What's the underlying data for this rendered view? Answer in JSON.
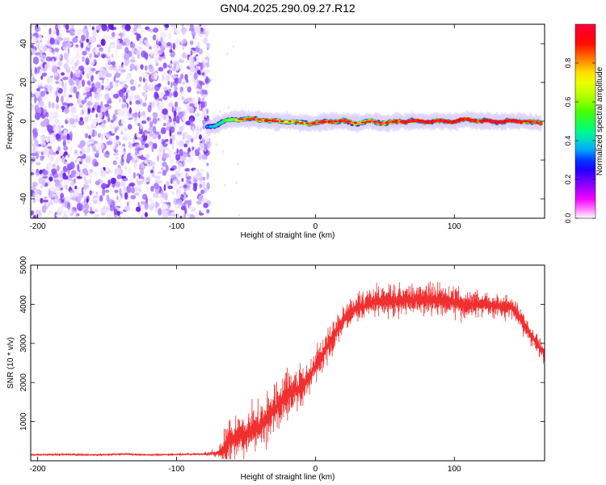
{
  "title": "GN04.2025.290.09.27.R12",
  "chart_data": [
    {
      "type": "heatmap",
      "title": "GN04.2025.290.09.27.R12",
      "xlabel": "Height of straight line (km)",
      "ylabel": "Frequency (Hz)",
      "xlim": [
        -205,
        165
      ],
      "ylim": [
        -50,
        50
      ],
      "x_ticks": [
        {
          "value": -200,
          "label": "-200"
        },
        {
          "value": -100,
          "label": "-100"
        },
        {
          "value": 0,
          "label": "0"
        },
        {
          "value": 100,
          "label": "100"
        }
      ],
      "y_ticks": [
        {
          "value": -40,
          "label": "-40"
        },
        {
          "value": -20,
          "label": "-20"
        },
        {
          "value": 0,
          "label": "0"
        },
        {
          "value": 20,
          "label": "20"
        },
        {
          "value": 40,
          "label": "40"
        }
      ],
      "noise_region": {
        "x_from": -205,
        "x_to": -77,
        "amplitude": "0.0-0.1"
      },
      "signal_trace": {
        "x": [
          -78,
          -72,
          -65,
          -58,
          -50,
          -40,
          -30,
          -20,
          -10,
          0,
          10,
          20,
          30,
          40,
          50,
          60,
          70,
          80,
          90,
          100,
          110,
          120,
          130,
          140,
          150,
          163
        ],
        "frequency": [
          -3,
          -2,
          0,
          1,
          1,
          1,
          0,
          0,
          -1,
          -1,
          0,
          0,
          -1,
          0,
          -1,
          0,
          0,
          0,
          0,
          0,
          1,
          0,
          0,
          0,
          0,
          -1
        ],
        "amplitude": [
          0.3,
          0.4,
          0.5,
          0.6,
          0.8,
          0.8,
          0.85,
          0.7,
          0.75,
          0.8,
          0.85,
          0.85,
          0.75,
          0.8,
          0.85,
          0.85,
          0.9,
          0.9,
          0.9,
          0.9,
          0.9,
          0.85,
          0.9,
          0.9,
          0.85,
          0.8
        ]
      },
      "colorbar": {
        "label": "Normalized spectral amplitude",
        "range": [
          0,
          1
        ],
        "ticks": [
          {
            "value": 0.0,
            "label": "0.0"
          },
          {
            "value": 0.2,
            "label": "0.2"
          },
          {
            "value": 0.4,
            "label": "0.4"
          },
          {
            "value": 0.6,
            "label": "0.6"
          },
          {
            "value": 0.8,
            "label": "0.8"
          }
        ],
        "colors": [
          "#ffffff",
          "#ff00ff",
          "#8000ff",
          "#0000ff",
          "#00c0ff",
          "#00ff80",
          "#40ff00",
          "#c0ff00",
          "#ffff00",
          "#ff8000",
          "#ff0000",
          "#ff0040"
        ]
      }
    },
    {
      "type": "line",
      "xlabel": "Height of straight line (km)",
      "ylabel": "SNR (10 * v/v)",
      "xlim": [
        -205,
        165
      ],
      "ylim": [
        0,
        5000
      ],
      "x_ticks": [
        {
          "value": -200,
          "label": "-200"
        },
        {
          "value": -100,
          "label": "-100"
        },
        {
          "value": 0,
          "label": "0"
        },
        {
          "value": 100,
          "label": "100"
        }
      ],
      "y_ticks": [
        {
          "value": 1000,
          "label": "1000"
        },
        {
          "value": 2000,
          "label": "2000"
        },
        {
          "value": 3000,
          "label": "3000"
        },
        {
          "value": 4000,
          "label": "4000"
        },
        {
          "value": 5000,
          "label": "5000"
        }
      ],
      "series": [
        {
          "name": "SNR",
          "color": "#f03030",
          "x": [
            -205,
            -180,
            -160,
            -140,
            -120,
            -100,
            -80,
            -70,
            -65,
            -62,
            -58,
            -55,
            -50,
            -45,
            -40,
            -35,
            -30,
            -25,
            -20,
            -15,
            -10,
            -5,
            0,
            5,
            10,
            15,
            20,
            25,
            30,
            35,
            40,
            50,
            60,
            70,
            80,
            90,
            100,
            110,
            120,
            130,
            140,
            145,
            150,
            155,
            160,
            165
          ],
          "y": [
            150,
            160,
            150,
            170,
            150,
            160,
            170,
            200,
            300,
            600,
            500,
            700,
            650,
            800,
            900,
            1050,
            1300,
            1500,
            1700,
            1800,
            1900,
            2100,
            2400,
            2700,
            3000,
            3300,
            3600,
            3750,
            3900,
            3950,
            4050,
            4100,
            4100,
            4100,
            4100,
            4100,
            4050,
            4000,
            4000,
            3950,
            3950,
            3800,
            3500,
            3200,
            3000,
            2700
          ],
          "spread": [
            40,
            40,
            40,
            40,
            40,
            40,
            50,
            120,
            600,
            800,
            700,
            800,
            700,
            700,
            700,
            800,
            800,
            700,
            700,
            600,
            600,
            500,
            500,
            500,
            500,
            500,
            450,
            450,
            450,
            450,
            450,
            450,
            500,
            500,
            550,
            550,
            500,
            450,
            400,
            400,
            350,
            350,
            350,
            350,
            300,
            300
          ]
        }
      ]
    }
  ]
}
